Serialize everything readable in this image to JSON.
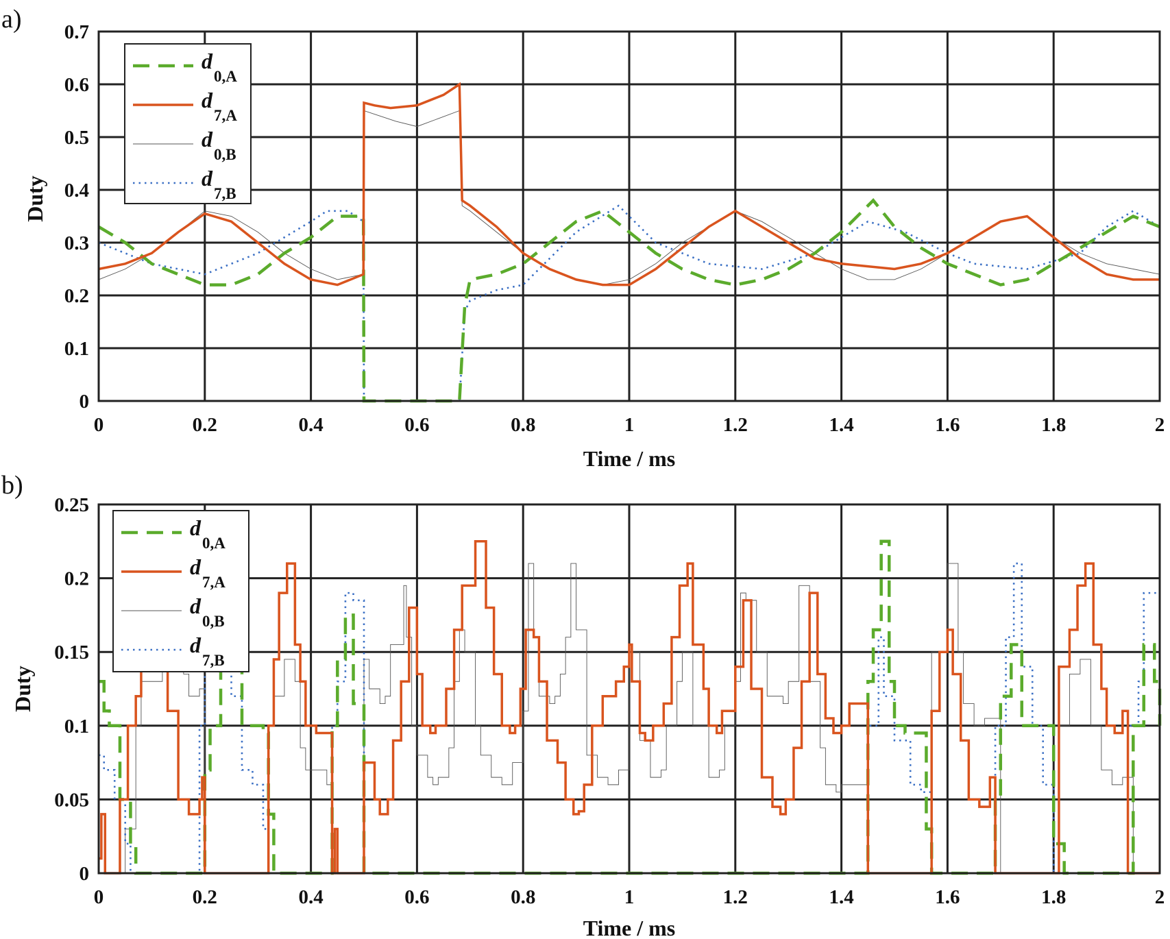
{
  "chart_data": [
    {
      "type": "line",
      "panel_label": "a)",
      "xlabel": "Time / ms",
      "ylabel": "Duty",
      "xlim": [
        0,
        2
      ],
      "ylim": [
        0,
        0.7
      ],
      "xticks": [
        "0",
        "0.2",
        "0.4",
        "0.6",
        "0.8",
        "1",
        "1.2",
        "1.4",
        "1.6",
        "1.8",
        "2"
      ],
      "yticks": [
        "0",
        "0.1",
        "0.2",
        "0.3",
        "0.4",
        "0.5",
        "0.6",
        "0.7"
      ],
      "grid": true,
      "legend_position": "top-left",
      "interpolation": "linear",
      "series": [
        {
          "name": "d0,A",
          "label_main": "d",
          "label_sub": "0,A",
          "color": "#5bab2c",
          "style": "dashed",
          "x": [
            0,
            0.05,
            0.1,
            0.15,
            0.2,
            0.25,
            0.3,
            0.35,
            0.4,
            0.45,
            0.499,
            0.5,
            0.68,
            0.69,
            0.7,
            0.75,
            0.8,
            0.85,
            0.9,
            0.95,
            1.0,
            1.05,
            1.1,
            1.15,
            1.2,
            1.25,
            1.3,
            1.35,
            1.4,
            1.46,
            1.5,
            1.55,
            1.6,
            1.65,
            1.7,
            1.75,
            1.8,
            1.85,
            1.9,
            1.95,
            2.0
          ],
          "y": [
            0.33,
            0.3,
            0.26,
            0.24,
            0.22,
            0.22,
            0.24,
            0.28,
            0.31,
            0.35,
            0.35,
            0,
            0,
            0.18,
            0.23,
            0.24,
            0.26,
            0.3,
            0.34,
            0.36,
            0.32,
            0.28,
            0.25,
            0.23,
            0.22,
            0.23,
            0.25,
            0.28,
            0.32,
            0.38,
            0.33,
            0.29,
            0.26,
            0.24,
            0.22,
            0.23,
            0.26,
            0.29,
            0.32,
            0.35,
            0.33
          ]
        },
        {
          "name": "d7,A",
          "label_main": "d",
          "label_sub": "7,A",
          "color": "#d9541e",
          "style": "solid",
          "x": [
            0,
            0.05,
            0.1,
            0.15,
            0.2,
            0.25,
            0.3,
            0.35,
            0.4,
            0.45,
            0.499,
            0.5,
            0.52,
            0.55,
            0.6,
            0.65,
            0.68,
            0.685,
            0.7,
            0.75,
            0.8,
            0.85,
            0.9,
            0.95,
            1.0,
            1.05,
            1.1,
            1.15,
            1.2,
            1.25,
            1.3,
            1.35,
            1.4,
            1.45,
            1.5,
            1.55,
            1.6,
            1.65,
            1.7,
            1.75,
            1.8,
            1.85,
            1.9,
            1.95,
            2.0
          ],
          "y": [
            0.25,
            0.26,
            0.28,
            0.32,
            0.355,
            0.34,
            0.3,
            0.26,
            0.23,
            0.22,
            0.24,
            0.565,
            0.56,
            0.555,
            0.56,
            0.58,
            0.6,
            0.38,
            0.37,
            0.33,
            0.28,
            0.25,
            0.23,
            0.22,
            0.22,
            0.25,
            0.29,
            0.33,
            0.36,
            0.33,
            0.3,
            0.27,
            0.26,
            0.255,
            0.25,
            0.26,
            0.28,
            0.31,
            0.34,
            0.35,
            0.31,
            0.27,
            0.24,
            0.23,
            0.23
          ]
        },
        {
          "name": "d0,B",
          "label_main": "d",
          "label_sub": "0,B",
          "color": "#555555",
          "style": "thin",
          "x": [
            0,
            0.05,
            0.1,
            0.15,
            0.2,
            0.25,
            0.3,
            0.35,
            0.4,
            0.45,
            0.499,
            0.5,
            0.53,
            0.56,
            0.6,
            0.64,
            0.68,
            0.685,
            0.7,
            0.75,
            0.8,
            0.85,
            0.9,
            0.95,
            1.0,
            1.05,
            1.1,
            1.15,
            1.2,
            1.25,
            1.3,
            1.35,
            1.4,
            1.45,
            1.5,
            1.55,
            1.6,
            1.65,
            1.7,
            1.75,
            1.8,
            1.85,
            1.9,
            1.95,
            2.0
          ],
          "y": [
            0.23,
            0.25,
            0.28,
            0.32,
            0.36,
            0.35,
            0.32,
            0.28,
            0.25,
            0.23,
            0.24,
            0.55,
            0.54,
            0.53,
            0.52,
            0.535,
            0.55,
            0.37,
            0.36,
            0.32,
            0.28,
            0.25,
            0.23,
            0.22,
            0.23,
            0.26,
            0.3,
            0.33,
            0.36,
            0.34,
            0.31,
            0.28,
            0.25,
            0.23,
            0.23,
            0.25,
            0.28,
            0.31,
            0.34,
            0.35,
            0.31,
            0.28,
            0.26,
            0.25,
            0.24
          ]
        },
        {
          "name": "d7,B",
          "label_main": "d",
          "label_sub": "7,B",
          "color": "#3a6fc4",
          "style": "dotted",
          "x": [
            0,
            0.05,
            0.1,
            0.15,
            0.2,
            0.25,
            0.3,
            0.35,
            0.4,
            0.43,
            0.47,
            0.499,
            0.5,
            0.68,
            0.69,
            0.7,
            0.75,
            0.8,
            0.85,
            0.9,
            0.98,
            1.05,
            1.1,
            1.15,
            1.25,
            1.35,
            1.45,
            1.52,
            1.6,
            1.65,
            1.75,
            1.85,
            1.9,
            1.95,
            2.0
          ],
          "y": [
            0.3,
            0.28,
            0.26,
            0.25,
            0.24,
            0.26,
            0.28,
            0.31,
            0.34,
            0.36,
            0.36,
            0.34,
            0,
            0,
            0.17,
            0.19,
            0.21,
            0.22,
            0.27,
            0.32,
            0.37,
            0.3,
            0.28,
            0.26,
            0.25,
            0.28,
            0.34,
            0.32,
            0.28,
            0.26,
            0.25,
            0.28,
            0.33,
            0.36,
            0.33
          ]
        }
      ]
    },
    {
      "type": "line",
      "panel_label": "b)",
      "xlabel": "Time / ms",
      "ylabel": "Duty",
      "xlim": [
        0,
        2
      ],
      "ylim": [
        0,
        0.25
      ],
      "xticks": [
        "0",
        "0.2",
        "0.4",
        "0.6",
        "0.8",
        "1",
        "1.2",
        "1.4",
        "1.6",
        "1.8",
        "2"
      ],
      "yticks": [
        "0",
        "0.05",
        "0.1",
        "0.15",
        "0.2",
        "0.25"
      ],
      "grid": true,
      "legend_position": "top-left",
      "interpolation": "step",
      "series": [
        {
          "name": "d0,A",
          "label_main": "d",
          "label_sub": "0,A",
          "color": "#5bab2c",
          "style": "dashed",
          "x": [
            0,
            0.01,
            0.02,
            0.04,
            0.06,
            0.07,
            0.2,
            0.21,
            0.23,
            0.27,
            0.31,
            0.32,
            0.33,
            0.44,
            0.45,
            0.465,
            0.48,
            0.5,
            1.45,
            1.46,
            1.475,
            1.49,
            1.5,
            1.52,
            1.56,
            1.57,
            1.69,
            1.7,
            1.72,
            1.74,
            1.8,
            1.82,
            1.95,
            1.97,
            1.99,
            2.0
          ],
          "y": [
            0.13,
            0.11,
            0.1,
            0.05,
            0.02,
            0,
            0.07,
            0.1,
            0.14,
            0.1,
            0.095,
            0.04,
            0,
            0.1,
            0.145,
            0.175,
            0.115,
            0,
            0.13,
            0.165,
            0.225,
            0.13,
            0.1,
            0.095,
            0.03,
            0,
            0.05,
            0.12,
            0.155,
            0.1,
            0.02,
            0,
            0.1,
            0.155,
            0.13,
            0.1
          ]
        },
        {
          "name": "d7,A",
          "label_main": "d",
          "label_sub": "7,A",
          "color": "#d9541e",
          "style": "solid",
          "x": [
            0,
            0.005,
            0.012,
            0.04,
            0.055,
            0.07,
            0.08,
            0.1,
            0.13,
            0.15,
            0.17,
            0.19,
            0.195,
            0.2,
            0.31,
            0.32,
            0.33,
            0.34,
            0.355,
            0.37,
            0.38,
            0.39,
            0.41,
            0.44,
            0.445,
            0.45,
            0.5,
            0.52,
            0.53,
            0.545,
            0.555,
            0.57,
            0.585,
            0.6,
            0.61,
            0.625,
            0.635,
            0.655,
            0.67,
            0.685,
            0.71,
            0.73,
            0.745,
            0.76,
            0.775,
            0.785,
            0.795,
            0.805,
            0.82,
            0.83,
            0.845,
            0.865,
            0.88,
            0.895,
            0.905,
            0.915,
            0.93,
            0.95,
            0.975,
            0.99,
            1.0,
            1.005,
            1.02,
            1.03,
            1.045,
            1.065,
            1.08,
            1.095,
            1.11,
            1.12,
            1.14,
            1.15,
            1.165,
            1.175,
            1.2,
            1.215,
            1.23,
            1.25,
            1.27,
            1.285,
            1.295,
            1.31,
            1.325,
            1.34,
            1.355,
            1.37,
            1.385,
            1.4,
            1.415,
            1.45,
            1.57,
            1.585,
            1.6,
            1.61,
            1.625,
            1.64,
            1.66,
            1.68,
            1.69,
            1.81,
            1.83,
            1.845,
            1.86,
            1.875,
            1.89,
            1.9,
            1.915,
            1.93,
            1.94,
            2.0
          ],
          "y": [
            0.01,
            0.04,
            0,
            0.05,
            0.1,
            0.12,
            0.15,
            0.15,
            0.11,
            0.05,
            0.04,
            0.05,
            0.065,
            0,
            0,
            0.1,
            0.145,
            0.19,
            0.21,
            0.155,
            0.13,
            0.1,
            0.095,
            0,
            0.03,
            0,
            0.075,
            0.05,
            0.04,
            0.05,
            0.09,
            0.13,
            0.18,
            0.135,
            0.1,
            0.095,
            0.1,
            0.125,
            0.165,
            0.195,
            0.225,
            0.18,
            0.135,
            0.1,
            0.095,
            0.1,
            0.125,
            0.165,
            0.16,
            0.13,
            0.09,
            0.075,
            0.05,
            0.04,
            0.042,
            0.06,
            0.1,
            0.12,
            0.13,
            0.14,
            0.155,
            0.13,
            0.095,
            0.09,
            0.1,
            0.115,
            0.16,
            0.195,
            0.21,
            0.155,
            0.125,
            0.1,
            0.095,
            0.11,
            0.14,
            0.185,
            0.125,
            0.065,
            0.045,
            0.04,
            0.05,
            0.085,
            0.13,
            0.19,
            0.135,
            0.105,
            0.095,
            0.1,
            0.115,
            0,
            0.11,
            0.15,
            0.165,
            0.135,
            0.09,
            0.05,
            0.045,
            0.065,
            0,
            0.14,
            0.165,
            0.195,
            0.21,
            0.155,
            0.125,
            0.1,
            0.095,
            0.11,
            0,
            0
          ]
        },
        {
          "name": "d0,B",
          "label_main": "d",
          "label_sub": "0,B",
          "color": "#555555",
          "style": "thin",
          "x": [
            0,
            0.05,
            0.07,
            0.08,
            0.12,
            0.16,
            0.17,
            0.19,
            0.2,
            0.32,
            0.33,
            0.35,
            0.37,
            0.38,
            0.39,
            0.43,
            0.44,
            0.5,
            0.51,
            0.53,
            0.54,
            0.55,
            0.575,
            0.58,
            0.59,
            0.6,
            0.62,
            0.63,
            0.64,
            0.66,
            0.67,
            0.68,
            0.69,
            0.71,
            0.72,
            0.74,
            0.76,
            0.78,
            0.8,
            0.81,
            0.82,
            0.83,
            0.85,
            0.86,
            0.87,
            0.88,
            0.89,
            0.9,
            0.92,
            0.94,
            0.96,
            0.98,
            1.0,
            1.02,
            1.04,
            1.06,
            1.07,
            1.09,
            1.1,
            1.12,
            1.15,
            1.17,
            1.18,
            1.2,
            1.21,
            1.22,
            1.24,
            1.26,
            1.29,
            1.3,
            1.32,
            1.34,
            1.36,
            1.37,
            1.39,
            1.4,
            1.45,
            1.57,
            1.6,
            1.62,
            1.63,
            1.65,
            1.67,
            1.7,
            1.81,
            1.83,
            1.85,
            1.87,
            1.89,
            1.91,
            1.93,
            1.95,
            2.0
          ],
          "y": [
            0,
            0.03,
            0.1,
            0.13,
            0.14,
            0.135,
            0.12,
            0.125,
            0,
            0.1,
            0.12,
            0.145,
            0.13,
            0.085,
            0.07,
            0.06,
            0,
            0.145,
            0.125,
            0.115,
            0.12,
            0.155,
            0.195,
            0.16,
            0.1,
            0.08,
            0.065,
            0.06,
            0.065,
            0.085,
            0.13,
            0.165,
            0.15,
            0.1,
            0.08,
            0.065,
            0.06,
            0.075,
            0.11,
            0.21,
            0.16,
            0.12,
            0.115,
            0.12,
            0.135,
            0.16,
            0.21,
            0.165,
            0.08,
            0.065,
            0.06,
            0.07,
            0.15,
            0.09,
            0.065,
            0.07,
            0.1,
            0.13,
            0.15,
            0.1,
            0.065,
            0.07,
            0.1,
            0.13,
            0.19,
            0.185,
            0.15,
            0.12,
            0.115,
            0.13,
            0.195,
            0.13,
            0.085,
            0.06,
            0.055,
            0.06,
            0,
            0.15,
            0.21,
            0.15,
            0.115,
            0.1,
            0.105,
            0,
            0.1,
            0.135,
            0.145,
            0.1,
            0.07,
            0.06,
            0.065,
            0,
            0
          ]
        },
        {
          "name": "d7,B",
          "label_main": "d",
          "label_sub": "7,B",
          "color": "#3a6fc4",
          "style": "dotted",
          "x": [
            0,
            0.01,
            0.03,
            0.05,
            0.06,
            0.19,
            0.2,
            0.22,
            0.25,
            0.27,
            0.29,
            0.31,
            0.32,
            0.44,
            0.45,
            0.465,
            0.48,
            0.5,
            1.45,
            1.47,
            1.48,
            1.5,
            1.53,
            1.55,
            1.57,
            1.69,
            1.71,
            1.725,
            1.74,
            1.76,
            1.78,
            1.8,
            1.94,
            1.96,
            1.97,
            2.0
          ],
          "y": [
            0.08,
            0.07,
            0.05,
            0.02,
            0,
            0.1,
            0.14,
            0.14,
            0.12,
            0.07,
            0.06,
            0.03,
            0,
            0.1,
            0.13,
            0.19,
            0.185,
            0,
            0.1,
            0.16,
            0.12,
            0.09,
            0.06,
            0.055,
            0,
            0.1,
            0.16,
            0.21,
            0.14,
            0.1,
            0.06,
            0,
            0.1,
            0.13,
            0.19,
            0.185
          ]
        }
      ]
    }
  ]
}
